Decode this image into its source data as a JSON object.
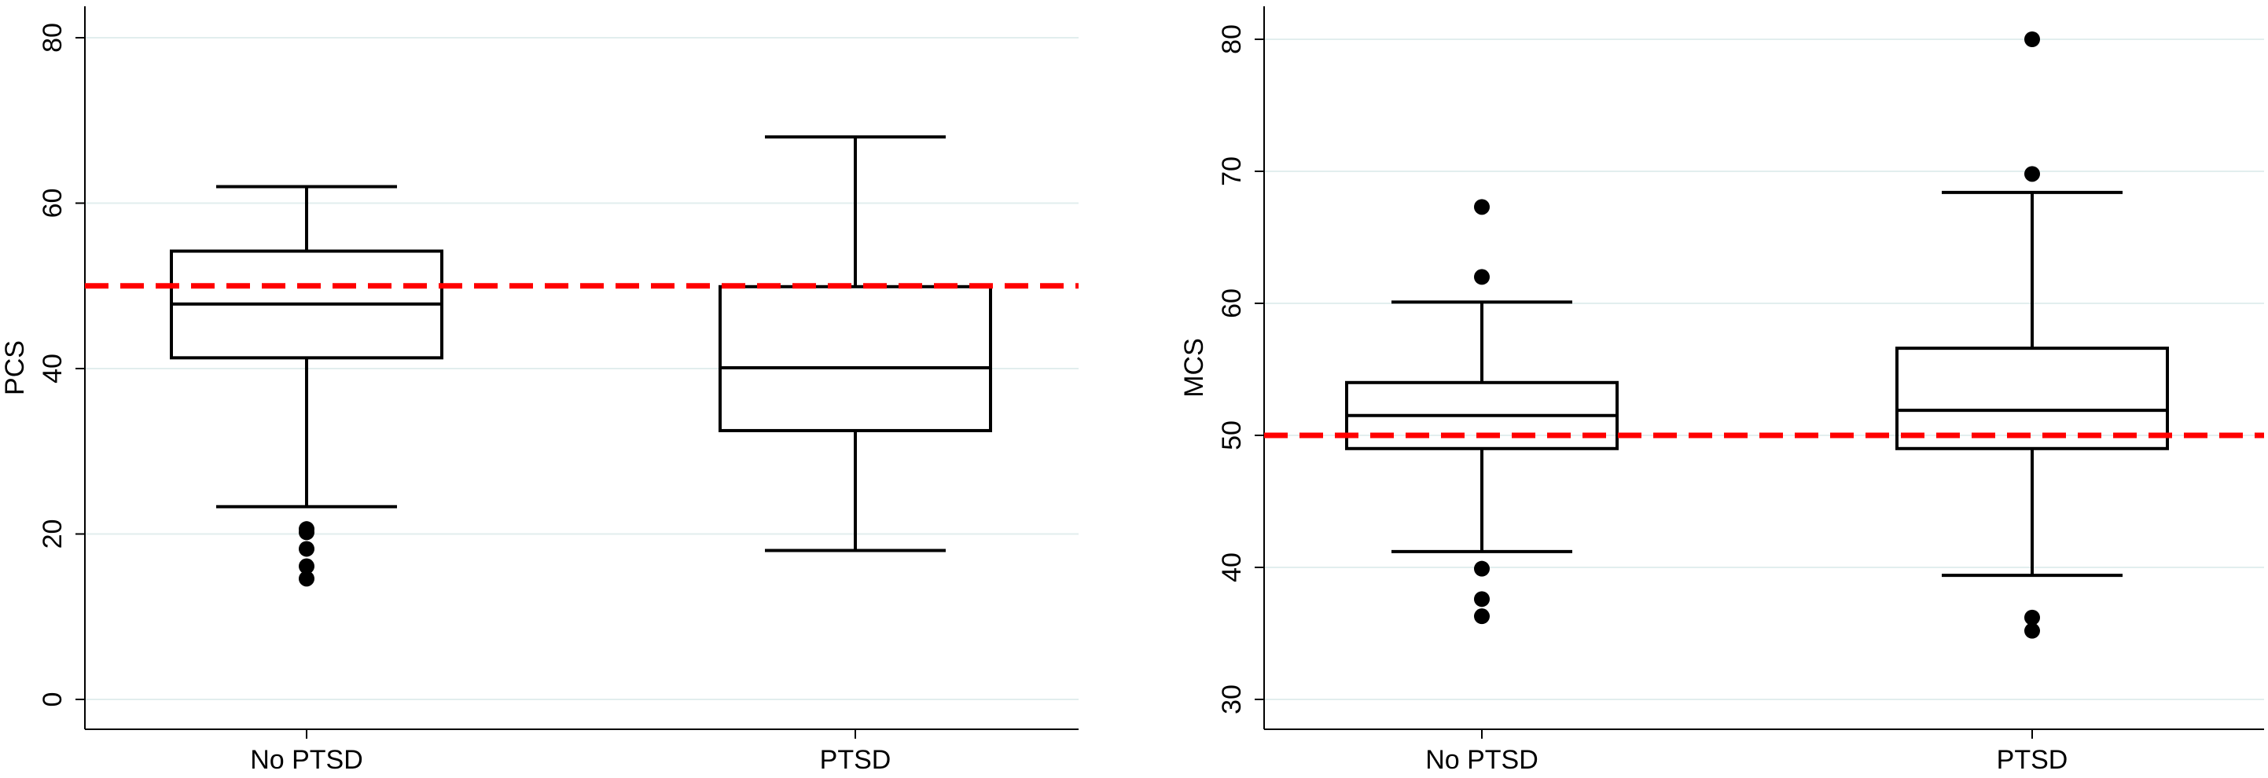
{
  "chart_data": [
    {
      "type": "box",
      "ylabel": "PCS",
      "xlabel": "",
      "ylim": [
        0,
        82
      ],
      "yticks": [
        0,
        20,
        40,
        60,
        80
      ],
      "grid": true,
      "categories": [
        "No PTSD",
        "PTSD"
      ],
      "boxes": [
        {
          "name": "No PTSD",
          "whisker_low": 23.3,
          "q1": 41.3,
          "median": 47.8,
          "q3": 54.2,
          "whisker_high": 62.0,
          "outliers": [
            20.6,
            20.2,
            18.2,
            16.1,
            14.6
          ]
        },
        {
          "name": "PTSD",
          "whisker_low": 18.0,
          "q1": 32.5,
          "median": 40.1,
          "q3": 49.9,
          "whisker_high": 68.0,
          "outliers": []
        }
      ],
      "reference_line": {
        "value": 50,
        "color": "#ff0000",
        "style": "dashed"
      }
    },
    {
      "type": "box",
      "ylabel": "MCS",
      "xlabel": "",
      "ylim": [
        28,
        82
      ],
      "yticks": [
        30,
        40,
        50,
        60,
        70,
        80
      ],
      "grid": true,
      "categories": [
        "No PTSD",
        "PTSD"
      ],
      "boxes": [
        {
          "name": "No PTSD",
          "whisker_low": 41.2,
          "q1": 49.0,
          "median": 51.5,
          "q3": 54.0,
          "whisker_high": 60.1,
          "outliers": [
            67.3,
            62.0,
            39.9,
            37.6,
            36.3
          ]
        },
        {
          "name": "PTSD",
          "whisker_low": 39.4,
          "q1": 49.0,
          "median": 51.9,
          "q3": 56.6,
          "whisker_high": 68.4,
          "outliers": [
            80.0,
            69.8,
            36.2,
            35.2
          ]
        }
      ],
      "reference_line": {
        "value": 50,
        "color": "#ff0000",
        "style": "dashed"
      }
    }
  ],
  "colors": {
    "grid": "#e2eeee",
    "box": "#000000",
    "reference": "#ff0000",
    "background": "#ffffff"
  }
}
